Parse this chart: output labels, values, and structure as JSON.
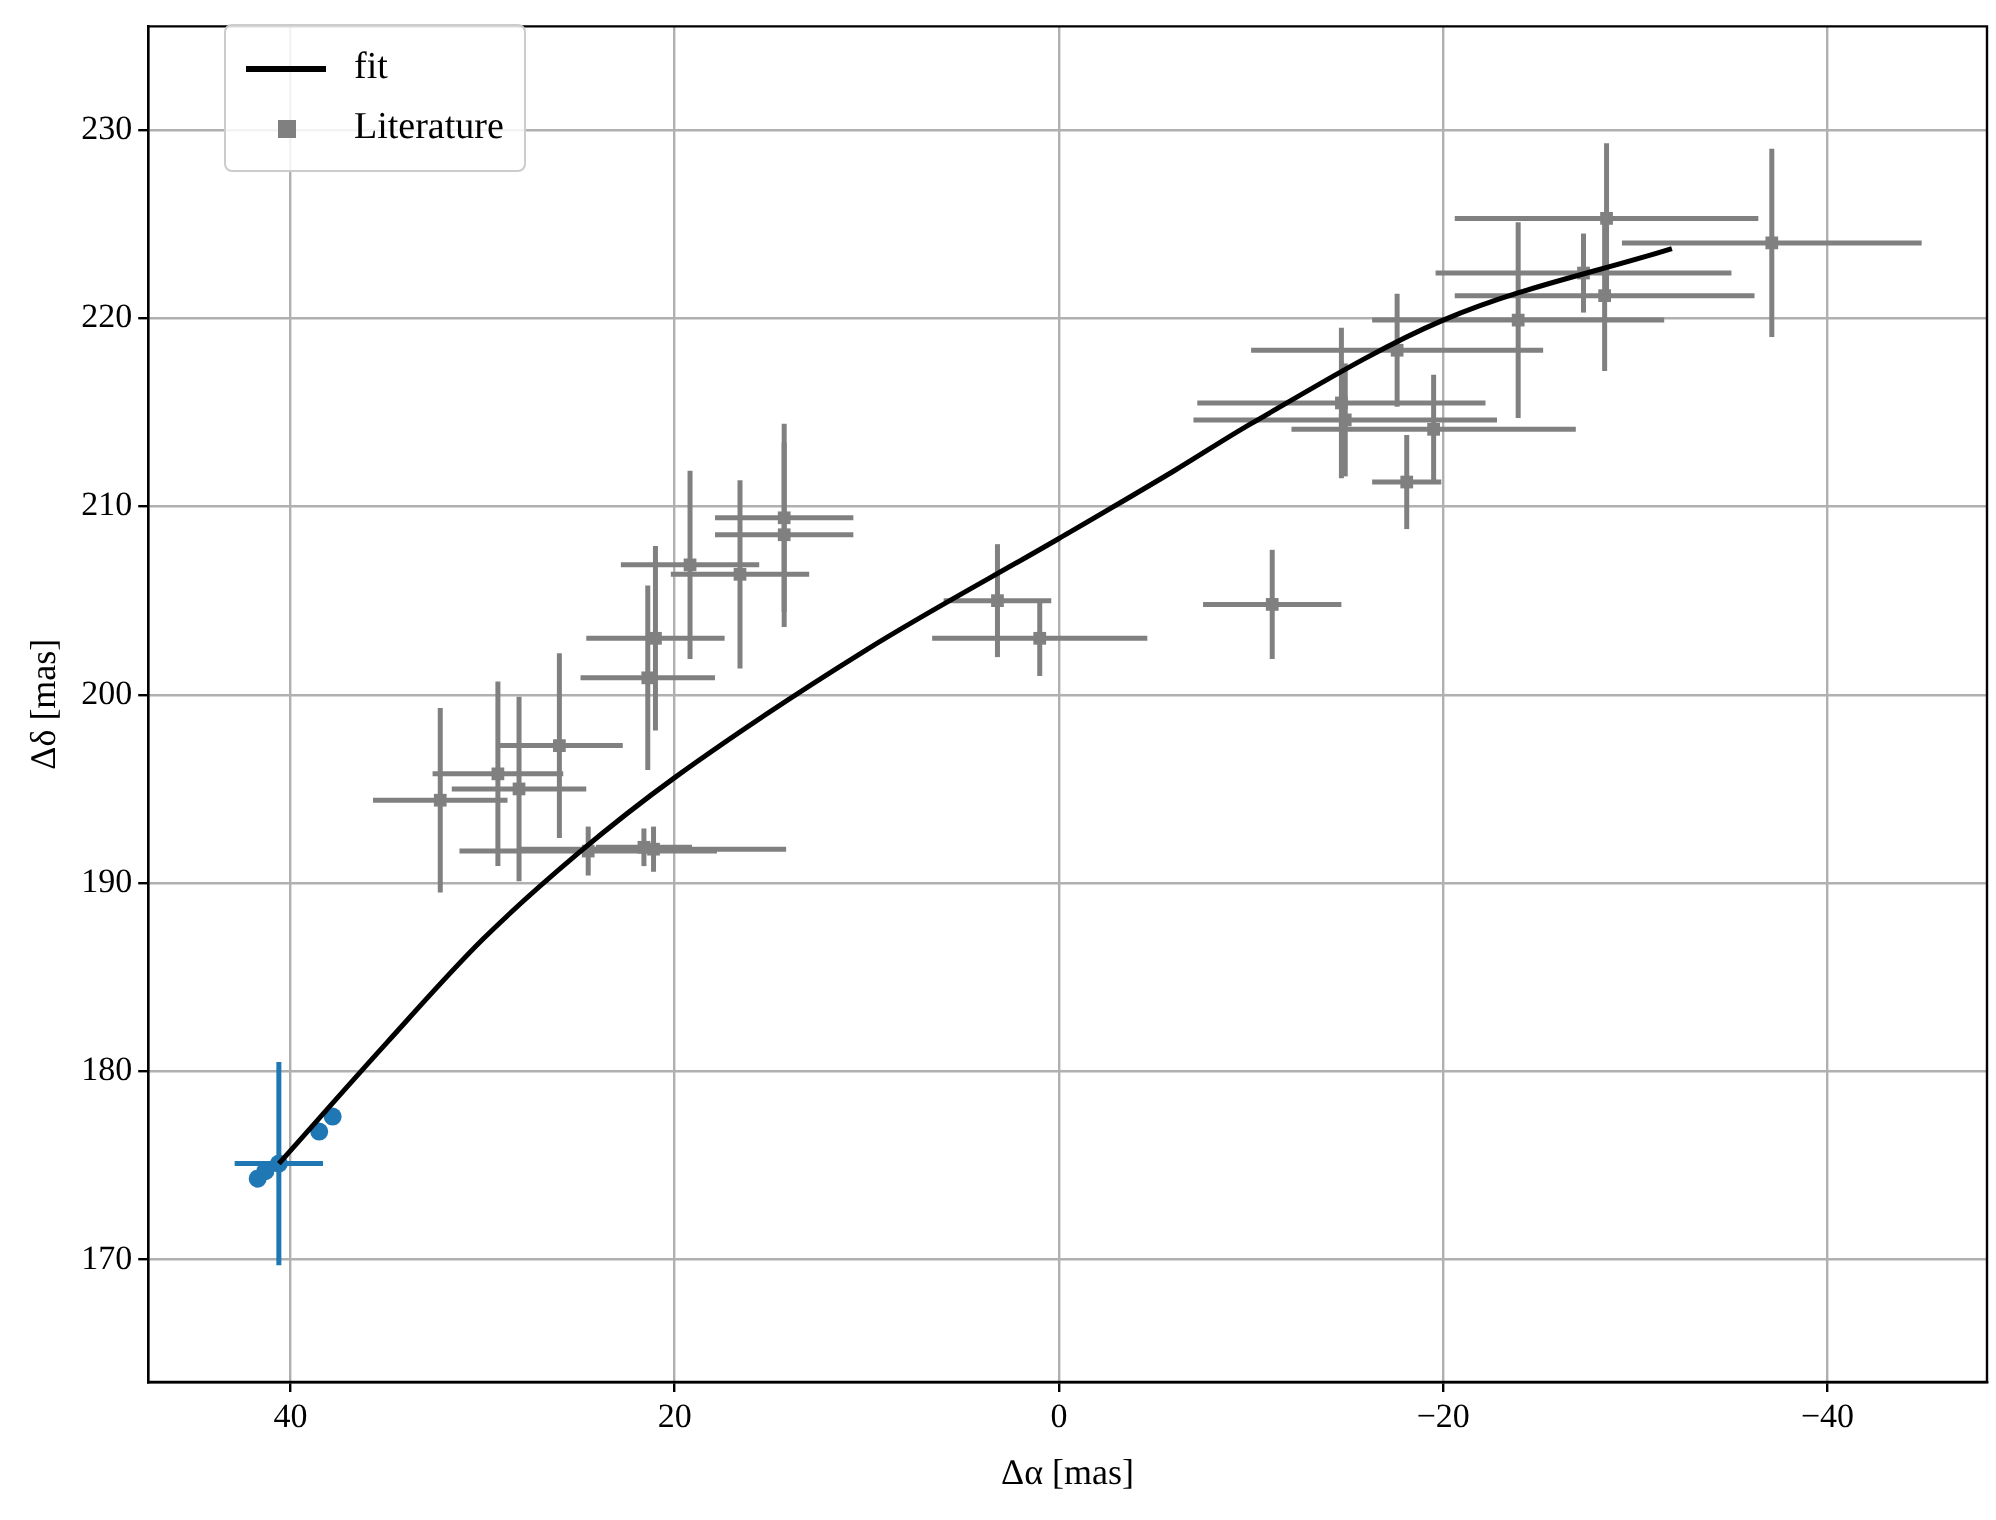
{
  "chart_data": {
    "type": "scatter",
    "xlabel": "Δα [mas]",
    "ylabel": "Δδ [mas]",
    "xlim": [
      47.4,
      -48.3
    ],
    "ylim": [
      163.5,
      235.5
    ],
    "xticks": [
      40,
      20,
      0,
      {
        "value": -20,
        "label": "−20"
      },
      {
        "value": -40,
        "label": "−40"
      }
    ],
    "yticks": [
      170,
      180,
      190,
      200,
      210,
      220,
      230
    ],
    "grid": true,
    "legend": "top left",
    "series": [
      {
        "name": "fit",
        "type": "line",
        "color": "#000000",
        "marker": "none",
        "line_style": "solid",
        "x": [
          40.6,
          35,
          30,
          25,
          20,
          10,
          0,
          -6,
          -10,
          -20,
          -31.9
        ],
        "values": [
          175.1,
          181.5,
          187,
          191.6,
          195.6,
          202.4,
          208.3,
          211.9,
          214.4,
          219.9,
          223.7
        ]
      },
      {
        "type": "scatter",
        "color": "#1f77b4",
        "marker": "circle",
        "x": [
          40.6,
          41.7,
          41.3,
          38.5,
          37.8
        ],
        "values": [
          175.1,
          174.3,
          174.7,
          176.8,
          177.6
        ],
        "errors": [
          5.4,
          null,
          null,
          null,
          null
        ],
        "xerrors": [
          2.3,
          null,
          null,
          null,
          null
        ]
      },
      {
        "name": "Literature",
        "type": "scatter",
        "color": "#808080",
        "marker": "square",
        "x": [
          32.2,
          29.2,
          28.1,
          26.0,
          24.5,
          21.1,
          21.6,
          21.4,
          21.0,
          19.2,
          16.6,
          14.3,
          14.3,
          3.2,
          1.0,
          -11.1,
          -28.5,
          -37.1,
          -27.3,
          -28.4,
          -23.9,
          -17.6,
          -14.7,
          -14.9,
          -19.5,
          -18.1
        ],
        "values": [
          194.4,
          195.8,
          195.0,
          197.3,
          191.7,
          191.8,
          191.9,
          200.9,
          203.0,
          206.9,
          206.4,
          209.4,
          208.5,
          205.0,
          203.0,
          204.8,
          225.3,
          224.0,
          222.4,
          221.2,
          219.9,
          218.3,
          215.5,
          214.6,
          214.1,
          211.3
        ],
        "errors": [
          4.9,
          4.9,
          4.9,
          4.9,
          1.3,
          1.2,
          1.0,
          4.9,
          4.9,
          5,
          5,
          5,
          4.9,
          3.0,
          2.0,
          2.9,
          4,
          5,
          2.1,
          4.0,
          5.2,
          3,
          4,
          3,
          2.9,
          2.5
        ],
        "xerrors": [
          3.5,
          3.4,
          3.5,
          3.3,
          6.7,
          6.9,
          2.5,
          3.5,
          3.6,
          3.6,
          3.6,
          3.6,
          3.6,
          2.8,
          5.6,
          3.6,
          7.9,
          7.8,
          7.7,
          7.8,
          7.6,
          7.6,
          7.5,
          7.9,
          7.4,
          1.8
        ]
      }
    ]
  }
}
